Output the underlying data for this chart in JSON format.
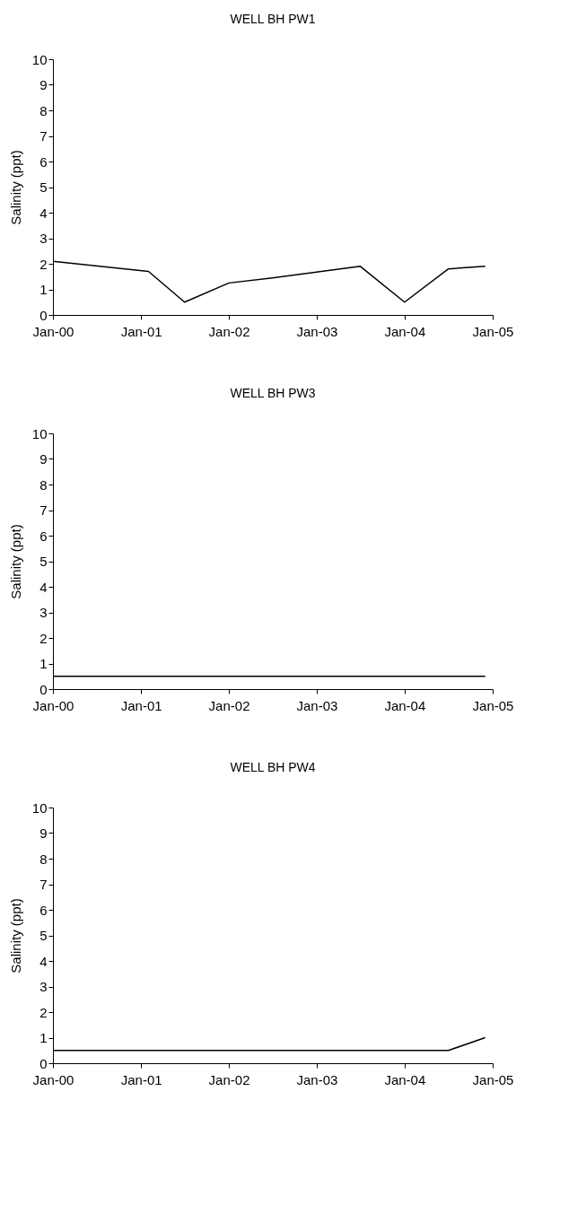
{
  "chart_data": [
    {
      "type": "line",
      "title": "WELL BH PW1",
      "ylabel": "Salinity (ppt)",
      "x": [
        "2000-01",
        "2001-02",
        "2001-07",
        "2002-01",
        "2002-07",
        "2003-07",
        "2004-01",
        "2004-07",
        "2004-12"
      ],
      "values": [
        2.1,
        1.7,
        0.5,
        1.25,
        1.45,
        1.9,
        0.5,
        1.8,
        1.9
      ],
      "color": "#000000",
      "xlim": [
        "2000-01",
        "2005-01"
      ],
      "xticks": [
        {
          "value": "2000-01",
          "label": "Jan-00"
        },
        {
          "value": "2001-01",
          "label": "Jan-01"
        },
        {
          "value": "2002-01",
          "label": "Jan-02"
        },
        {
          "value": "2003-01",
          "label": "Jan-03"
        },
        {
          "value": "2004-01",
          "label": "Jan-04"
        },
        {
          "value": "2005-01",
          "label": "Jan-05"
        }
      ],
      "ylim": [
        0,
        10
      ],
      "yticks": [
        0,
        1,
        2,
        3,
        4,
        5,
        6,
        7,
        8,
        9,
        10
      ],
      "grid": false,
      "legend": false
    },
    {
      "type": "line",
      "title": "WELL BH PW3",
      "ylabel": "Salinity (ppt)",
      "x": [
        "2000-01",
        "2004-12"
      ],
      "values": [
        0.5,
        0.5
      ],
      "color": "#000000",
      "xlim": [
        "2000-01",
        "2005-01"
      ],
      "xticks": [
        {
          "value": "2000-01",
          "label": "Jan-00"
        },
        {
          "value": "2001-01",
          "label": "Jan-01"
        },
        {
          "value": "2002-01",
          "label": "Jan-02"
        },
        {
          "value": "2003-01",
          "label": "Jan-03"
        },
        {
          "value": "2004-01",
          "label": "Jan-04"
        },
        {
          "value": "2005-01",
          "label": "Jan-05"
        }
      ],
      "ylim": [
        0,
        10
      ],
      "yticks": [
        0,
        1,
        2,
        3,
        4,
        5,
        6,
        7,
        8,
        9,
        10
      ],
      "grid": false,
      "legend": false
    },
    {
      "type": "line",
      "title": "WELL BH PW4",
      "ylabel": "Salinity (ppt)",
      "x": [
        "2000-01",
        "2004-07",
        "2004-12"
      ],
      "values": [
        0.5,
        0.5,
        1.0
      ],
      "color": "#000000",
      "xlim": [
        "2000-01",
        "2005-01"
      ],
      "xticks": [
        {
          "value": "2000-01",
          "label": "Jan-00"
        },
        {
          "value": "2001-01",
          "label": "Jan-01"
        },
        {
          "value": "2002-01",
          "label": "Jan-02"
        },
        {
          "value": "2003-01",
          "label": "Jan-03"
        },
        {
          "value": "2004-01",
          "label": "Jan-04"
        },
        {
          "value": "2005-01",
          "label": "Jan-05"
        }
      ],
      "ylim": [
        0,
        10
      ],
      "yticks": [
        0,
        1,
        2,
        3,
        4,
        5,
        6,
        7,
        8,
        9,
        10
      ],
      "grid": false,
      "legend": false
    }
  ]
}
